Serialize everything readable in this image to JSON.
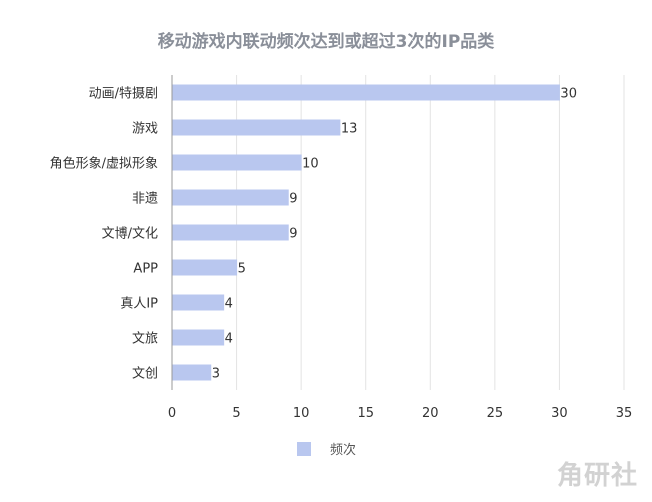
{
  "chart_data": {
    "type": "bar",
    "orientation": "horizontal",
    "title": "移动游戏内联动频次达到或超过3次的IP品类",
    "categories": [
      "动画/特摄剧",
      "游戏",
      "角色形象/虚拟形象",
      "非遗",
      "文博/文化",
      "APP",
      "真人IP",
      "文旅",
      "文创"
    ],
    "series": [
      {
        "name": "频次",
        "values": [
          30,
          13,
          10,
          9,
          9,
          5,
          4,
          4,
          3
        ]
      }
    ],
    "xlim": [
      0,
      35
    ],
    "xticks": [
      0,
      5,
      10,
      15,
      20,
      25,
      30,
      35
    ],
    "grid": true,
    "legend_position": "bottom",
    "bar_color": "#b9c7ef"
  },
  "watermark": {
    "logo": "角研社"
  }
}
